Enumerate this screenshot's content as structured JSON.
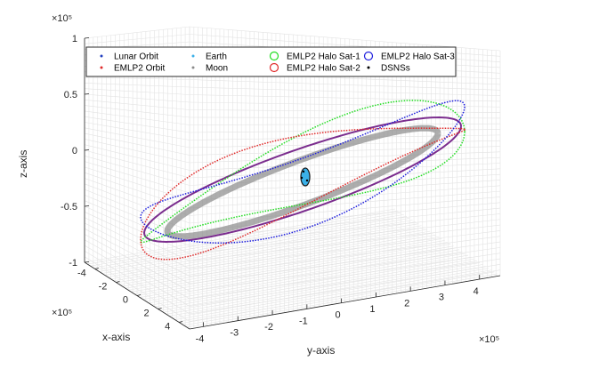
{
  "chart_data": {
    "type": "line",
    "title": "",
    "xlabel": "x-axis",
    "ylabel": "y-axis",
    "zlabel": "z-axis",
    "axis_exponent": "×10⁵",
    "x_ticks": [
      "-4",
      "-2",
      "0",
      "2",
      "4"
    ],
    "y_ticks": [
      "-4",
      "-3",
      "-2",
      "-1",
      "0",
      "1",
      "2",
      "3",
      "4"
    ],
    "z_ticks": [
      "1",
      "0.5",
      "0",
      "-0.5",
      "-1"
    ],
    "xlim": [
      -4.5,
      4.5
    ],
    "ylim": [
      -4.5,
      4.5
    ],
    "zlim": [
      -1,
      1
    ],
    "grid": true,
    "legend_position": "top",
    "series": [
      {
        "name": "Lunar Orbit",
        "color": "#1f3dbf",
        "marker": "dot"
      },
      {
        "name": "EMLP2 Orbit",
        "color": "#e02a2a",
        "marker": "dot"
      },
      {
        "name": "Earth",
        "color": "#3ab0e8",
        "marker": "dot"
      },
      {
        "name": "Moon",
        "color": "#8a8a8a",
        "marker": "dot"
      },
      {
        "name": "EMLP2 Halo Sat-1",
        "color": "#22dd22",
        "marker": "circle"
      },
      {
        "name": "EMLP2 Halo Sat-2",
        "color": "#e02a2a",
        "marker": "circle"
      },
      {
        "name": "EMLP2 Halo Sat-3",
        "color": "#1f1fdd",
        "marker": "circle"
      },
      {
        "name": "DSNSs",
        "color": "#000000",
        "marker": "dot"
      }
    ]
  }
}
